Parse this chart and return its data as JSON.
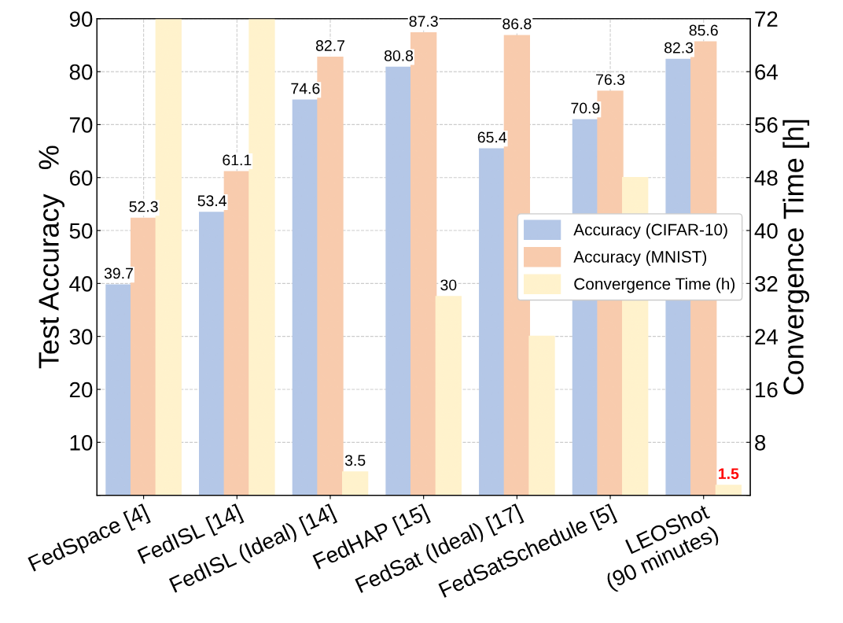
{
  "chart_data": {
    "type": "bar",
    "ylabel": "Test Accuracy   %",
    "y2label": "Convergence Time [h]",
    "categories": [
      "FedSpace [4]",
      "FedISL [14]",
      "FedISL (Ideal) [14]",
      "FedHAP [15]",
      "FedSat (Ideal) [17]",
      "FedSatSchedule [5]",
      "LEOShot\n(90 minutes)"
    ],
    "series": [
      {
        "name": "Accuracy (CIFAR-10)",
        "color": "#b4c7e7",
        "values": [
          39.7,
          53.4,
          74.6,
          80.8,
          65.4,
          70.9,
          82.3
        ],
        "value_labels": [
          "39.7",
          "53.4",
          "74.6",
          "80.8",
          "65.4",
          "70.9",
          "82.3"
        ]
      },
      {
        "name": "Accuracy (MNIST)",
        "color": "#f8cbad",
        "values": [
          52.3,
          61.1,
          82.7,
          87.3,
          86.8,
          76.3,
          85.6
        ],
        "value_labels": [
          "52.3",
          "61.1",
          "82.7",
          "87.3",
          "86.8",
          "76.3",
          "85.6"
        ]
      },
      {
        "name": "Convergence Time (h)",
        "color": "#fff2cc",
        "axis": "y2",
        "values": [
          72,
          72,
          3.5,
          30,
          24,
          48,
          1.5
        ],
        "value_labels": [
          null,
          null,
          "3.5",
          "30",
          null,
          null,
          "1.5"
        ]
      }
    ],
    "ylim": [
      0,
      90
    ],
    "yticks": [
      {
        "value": 0,
        "label": null
      },
      10,
      20,
      30,
      40,
      50,
      60,
      70,
      80,
      90
    ],
    "y2lim": [
      0,
      72
    ],
    "y2ticks": [
      {
        "value": 0,
        "label": null
      },
      8,
      16,
      24,
      32,
      40,
      48,
      56,
      64,
      72
    ],
    "grid": true,
    "legend": "right"
  }
}
